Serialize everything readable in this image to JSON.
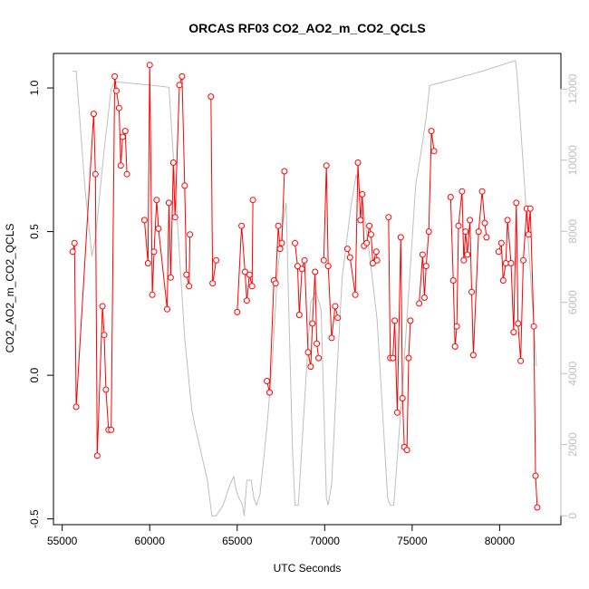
{
  "chart_data": {
    "type": "line",
    "title": "ORCAS RF03 CO2_AO2_m_CO2_QCLS",
    "xlabel": "UTC Seconds",
    "ylabel": "CO2_AO2_m_CO2_QCLS",
    "xlim": [
      54500,
      83500
    ],
    "ylim": [
      -0.52,
      1.12
    ],
    "y2lim": [
      -250,
      13000
    ],
    "x_ticks": [
      55000,
      60000,
      65000,
      70000,
      75000,
      80000
    ],
    "y_ticks": [
      -0.5,
      0.0,
      0.5,
      1.0
    ],
    "y2_ticks": [
      0,
      2000,
      4000,
      6000,
      8000,
      10000,
      12000
    ],
    "x_tick_labels": [
      "55000",
      "60000",
      "65000",
      "70000",
      "75000",
      "80000"
    ],
    "y_tick_labels": [
      "-0.5",
      "0.0",
      "0.5",
      "1.0"
    ],
    "y2_tick_labels": [
      "0",
      "2000",
      "4000",
      "6000",
      "8000",
      "10000",
      "12000"
    ],
    "colors": {
      "series": "#ff0000",
      "altitude": "#bebebe",
      "axis": "#000000",
      "right_axis": "#bebebe"
    },
    "series": [
      {
        "role": "difference",
        "color": "#ff0000",
        "marker": "open-circle",
        "segments": [
          [
            [
              55600,
              0.43
            ],
            [
              55700,
              0.46
            ],
            [
              55800,
              -0.11
            ],
            [
              56800,
              0.91
            ],
            [
              56900,
              0.7
            ],
            [
              57000,
              -0.28
            ],
            [
              57300,
              0.24
            ],
            [
              57400,
              0.14
            ],
            [
              57500,
              -0.05
            ],
            [
              57650,
              -0.19
            ],
            [
              57800,
              -0.19
            ],
            [
              58000,
              1.04
            ],
            [
              58100,
              0.99
            ],
            [
              58250,
              0.93
            ],
            [
              58350,
              0.73
            ],
            [
              58450,
              0.83
            ],
            [
              58600,
              0.85
            ],
            [
              58700,
              0.7
            ]
          ],
          [
            [
              59700,
              0.54
            ],
            [
              59900,
              0.39
            ],
            [
              60000,
              1.08
            ],
            [
              60150,
              0.28
            ],
            [
              60250,
              0.43
            ],
            [
              60400,
              0.61
            ],
            [
              60500,
              0.51
            ],
            [
              61000,
              0.23
            ],
            [
              61100,
              0.6
            ],
            [
              61200,
              0.34
            ],
            [
              61350,
              0.74
            ],
            [
              61450,
              0.55
            ],
            [
              61700,
              1.01
            ],
            [
              61850,
              1.04
            ],
            [
              62000,
              0.66
            ],
            [
              62100,
              0.35
            ],
            [
              62250,
              0.31
            ],
            [
              62300,
              0.49
            ]
          ],
          [
            [
              63500,
              0.97
            ],
            [
              63600,
              0.32
            ],
            [
              63800,
              0.4
            ]
          ],
          [
            [
              65000,
              0.22
            ],
            [
              65250,
              0.52
            ],
            [
              65450,
              0.36
            ],
            [
              65550,
              0.26
            ],
            [
              65700,
              0.35
            ],
            [
              65850,
              0.31
            ],
            [
              65900,
              0.61
            ]
          ],
          [
            [
              66700,
              -0.02
            ],
            [
              66850,
              -0.06
            ],
            [
              67100,
              0.33
            ],
            [
              67200,
              0.32
            ],
            [
              67350,
              0.52
            ],
            [
              67450,
              0.44
            ],
            [
              67550,
              0.46
            ],
            [
              67700,
              0.71
            ]
          ],
          [
            [
              68300,
              0.46
            ],
            [
              68450,
              0.38
            ],
            [
              68550,
              0.21
            ],
            [
              68700,
              0.37
            ],
            [
              68850,
              0.4
            ],
            [
              69050,
              0.08
            ],
            [
              69200,
              0.03
            ],
            [
              69300,
              0.18
            ],
            [
              69450,
              0.36
            ],
            [
              69550,
              0.11
            ],
            [
              69650,
              0.06
            ]
          ],
          [
            [
              69950,
              0.4
            ],
            [
              70100,
              0.73
            ],
            [
              70200,
              0.38
            ],
            [
              70400,
              0.13
            ],
            [
              70600,
              0.24
            ],
            [
              70750,
              0.2
            ]
          ],
          [
            [
              71300,
              0.44
            ],
            [
              71450,
              0.41
            ],
            [
              71750,
              0.28
            ],
            [
              71900,
              0.74
            ],
            [
              72050,
              0.54
            ],
            [
              72150,
              0.63
            ],
            [
              72250,
              0.45
            ],
            [
              72400,
              0.46
            ],
            [
              72550,
              0.52
            ],
            [
              72650,
              0.49
            ],
            [
              72750,
              0.39
            ],
            [
              72950,
              0.43
            ],
            [
              73000,
              0.4
            ]
          ],
          [
            [
              73650,
              0.55
            ],
            [
              73750,
              0.06
            ],
            [
              73900,
              0.06
            ],
            [
              74000,
              0.19
            ],
            [
              74150,
              -0.13
            ],
            [
              74350,
              0.48
            ],
            [
              74450,
              -0.08
            ],
            [
              74550,
              -0.25
            ],
            [
              74700,
              -0.26
            ],
            [
              74800,
              0.06
            ],
            [
              74900,
              0.19
            ]
          ],
          [
            [
              75400,
              0.25
            ],
            [
              75600,
              0.42
            ],
            [
              75700,
              0.27
            ],
            [
              75800,
              0.38
            ],
            [
              75950,
              0.5
            ],
            [
              76100,
              0.85
            ],
            [
              76250,
              0.78
            ]
          ],
          [
            [
              77200,
              0.62
            ],
            [
              77350,
              0.33
            ],
            [
              77450,
              0.1
            ],
            [
              77550,
              0.17
            ],
            [
              77650,
              0.52
            ],
            [
              77850,
              0.64
            ],
            [
              77950,
              0.4
            ],
            [
              78050,
              0.5
            ],
            [
              78150,
              0.42
            ],
            [
              78300,
              0.54
            ],
            [
              78400,
              0.29
            ],
            [
              78500,
              0.07
            ],
            [
              78800,
              0.5
            ],
            [
              79000,
              0.64
            ],
            [
              79150,
              0.53
            ],
            [
              79250,
              0.48
            ]
          ],
          [
            [
              79950,
              0.43
            ],
            [
              80100,
              0.46
            ],
            [
              80200,
              0.33
            ],
            [
              80350,
              0.39
            ],
            [
              80450,
              0.54
            ],
            [
              80650,
              0.39
            ],
            [
              80800,
              0.15
            ],
            [
              80950,
              0.6
            ],
            [
              81050,
              0.18
            ],
            [
              81200,
              0.05
            ],
            [
              81350,
              0.4
            ],
            [
              81550,
              0.58
            ],
            [
              81650,
              0.49
            ],
            [
              81750,
              0.58
            ],
            [
              81950,
              0.17
            ],
            [
              82050,
              -0.35
            ],
            [
              82150,
              -0.46
            ]
          ]
        ]
      },
      {
        "role": "altitude",
        "color": "#bebebe",
        "axis": "right",
        "points": [
          [
            55600,
            12500
          ],
          [
            55800,
            12500
          ],
          [
            56300,
            9200
          ],
          [
            56700,
            7300
          ],
          [
            56900,
            7800
          ],
          [
            57400,
            10300
          ],
          [
            57800,
            12000
          ],
          [
            58000,
            12200
          ],
          [
            58100,
            12200
          ],
          [
            60200,
            12100
          ],
          [
            61100,
            12050
          ],
          [
            61300,
            10500
          ],
          [
            62000,
            5000
          ],
          [
            62400,
            3000
          ],
          [
            62600,
            2500
          ],
          [
            63300,
            1000
          ],
          [
            63550,
            0
          ],
          [
            63800,
            0
          ],
          [
            64200,
            300
          ],
          [
            64600,
            900
          ],
          [
            64800,
            1100
          ],
          [
            64950,
            700
          ],
          [
            65100,
            500
          ],
          [
            65300,
            300
          ],
          [
            65400,
            0
          ],
          [
            65550,
            1000
          ],
          [
            65800,
            1000
          ],
          [
            65950,
            500
          ],
          [
            66100,
            300
          ],
          [
            66300,
            600
          ],
          [
            66700,
            2500
          ],
          [
            67000,
            4300
          ],
          [
            67300,
            6800
          ],
          [
            67600,
            8200
          ],
          [
            67800,
            8800
          ],
          [
            67950,
            5800
          ],
          [
            68150,
            2000
          ],
          [
            68300,
            300
          ],
          [
            68500,
            300
          ],
          [
            68800,
            2800
          ],
          [
            69200,
            6000
          ],
          [
            69500,
            6300
          ],
          [
            69800,
            5800
          ],
          [
            70100,
            500
          ],
          [
            70200,
            300
          ],
          [
            70400,
            900
          ],
          [
            70700,
            4000
          ],
          [
            71000,
            6700
          ],
          [
            71500,
            8700
          ],
          [
            71800,
            9600
          ],
          [
            72200,
            8700
          ],
          [
            72600,
            7200
          ],
          [
            73000,
            5500
          ],
          [
            73300,
            3000
          ],
          [
            73600,
            500
          ],
          [
            73750,
            300
          ],
          [
            73950,
            300
          ],
          [
            74400,
            3300
          ],
          [
            74900,
            7000
          ],
          [
            75200,
            9300
          ],
          [
            75500,
            10200
          ],
          [
            75800,
            11200
          ],
          [
            76000,
            12100
          ],
          [
            76800,
            12200
          ],
          [
            79000,
            12500
          ],
          [
            80900,
            12800
          ],
          [
            81000,
            12400
          ],
          [
            81600,
            8000
          ],
          [
            82100,
            4200
          ]
        ]
      }
    ]
  }
}
